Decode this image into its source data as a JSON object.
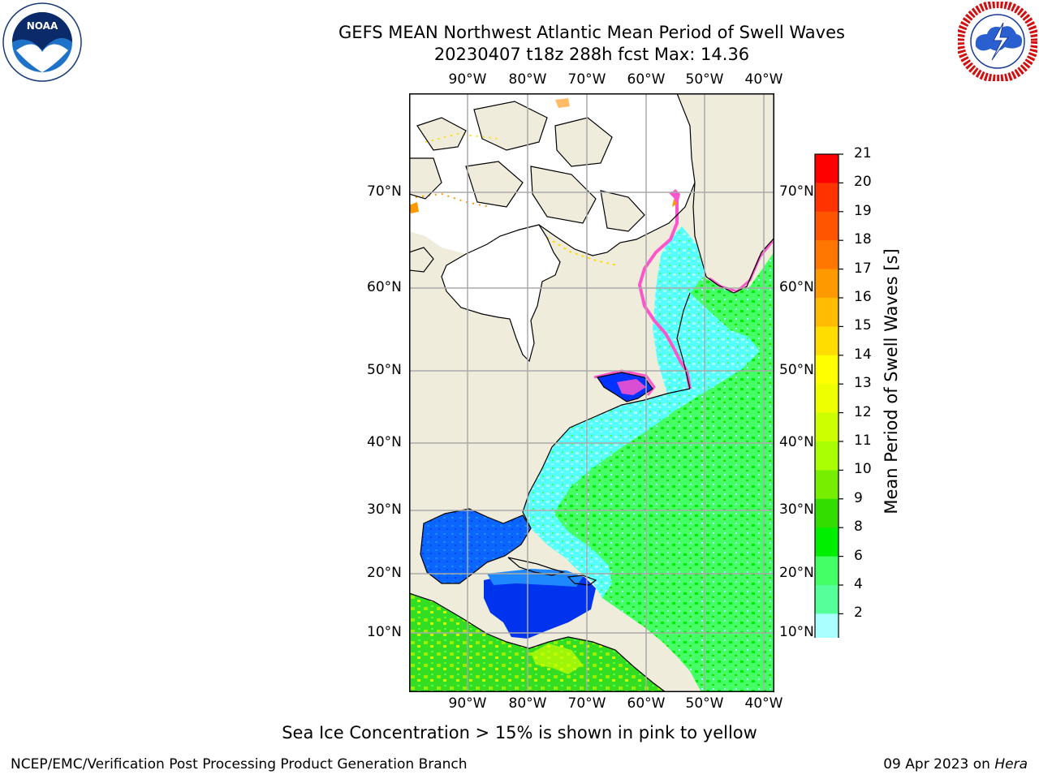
{
  "header": {
    "title_line1": "GEFS MEAN Northwest Atlantic Mean Period of Swell Waves",
    "title_line2": "20230407 t18z 288h fcst   Max: 14.36"
  },
  "map": {
    "lon_labels": [
      "90°W",
      "80°W",
      "70°W",
      "60°W",
      "50°W",
      "40°W"
    ],
    "lat_labels": [
      "70°N",
      "60°N",
      "50°N",
      "40°N",
      "30°N",
      "20°N",
      "10°N"
    ]
  },
  "colorbar": {
    "title": "Mean Period of Swell Waves [s]",
    "ticks": [
      "21",
      "20",
      "19",
      "18",
      "17",
      "16",
      "15",
      "14",
      "13",
      "12",
      "11",
      "10",
      "9",
      "8",
      "6",
      "4",
      "2"
    ],
    "colors": [
      "#ff0000",
      "#ff3300",
      "#ff5500",
      "#ff7700",
      "#ff9900",
      "#ffbb00",
      "#ffdd00",
      "#ffff00",
      "#eeff00",
      "#ccff00",
      "#aaff00",
      "#77ee00",
      "#33dd00",
      "#00ee00",
      "#44ff66",
      "#55ff99",
      "#aaffff",
      "#55ffff",
      "#00ffff",
      "#00ccff",
      "#0077ff"
    ],
    "extend_color": "#0000ff"
  },
  "note": "Sea Ice Concentration > 15% is shown in pink to yellow",
  "footer": {
    "left": "NCEP/EMC/Verification Post Processing Product Generation Branch",
    "right_date": "09 Apr 2023 on ",
    "right_host": "Hera"
  }
}
